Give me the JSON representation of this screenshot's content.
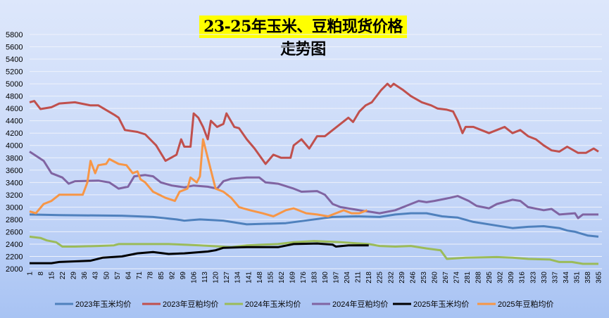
{
  "chart_data": {
    "type": "line",
    "title": "23-25年玉米、豆粕现货价格走势图",
    "xlabel": "",
    "ylabel": "",
    "ylim": [
      2000,
      5800
    ],
    "yticks": [
      2000,
      2200,
      2400,
      2600,
      2800,
      3000,
      3200,
      3400,
      3600,
      3800,
      4000,
      4200,
      4400,
      4600,
      4800,
      5000,
      5200,
      5400,
      5600,
      5800
    ],
    "xlim": [
      1,
      365
    ],
    "xticks": [
      1,
      8,
      15,
      22,
      29,
      36,
      43,
      50,
      57,
      64,
      71,
      78,
      85,
      92,
      99,
      106,
      113,
      120,
      127,
      134,
      141,
      148,
      155,
      162,
      169,
      176,
      183,
      190,
      197,
      204,
      211,
      218,
      225,
      232,
      239,
      246,
      253,
      260,
      267,
      274,
      281,
      288,
      295,
      302,
      309,
      316,
      323,
      330,
      337,
      344,
      351,
      358,
      365
    ],
    "grid": true,
    "legend": "bottom",
    "series": [
      {
        "name": "2023年玉米均价",
        "color": "#4f81bd",
        "points": [
          [
            1,
            2880
          ],
          [
            20,
            2870
          ],
          [
            60,
            2860
          ],
          [
            80,
            2840
          ],
          [
            95,
            2800
          ],
          [
            100,
            2780
          ],
          [
            110,
            2800
          ],
          [
            125,
            2780
          ],
          [
            140,
            2720
          ],
          [
            165,
            2740
          ],
          [
            180,
            2790
          ],
          [
            195,
            2840
          ],
          [
            210,
            2850
          ],
          [
            225,
            2840
          ],
          [
            235,
            2880
          ],
          [
            245,
            2900
          ],
          [
            255,
            2900
          ],
          [
            265,
            2850
          ],
          [
            275,
            2830
          ],
          [
            285,
            2760
          ],
          [
            300,
            2700
          ],
          [
            310,
            2660
          ],
          [
            320,
            2680
          ],
          [
            330,
            2690
          ],
          [
            340,
            2660
          ],
          [
            345,
            2620
          ],
          [
            350,
            2600
          ],
          [
            358,
            2540
          ],
          [
            365,
            2520
          ]
        ]
      },
      {
        "name": "2023年豆粕均价",
        "color": "#c0504d",
        "points": [
          [
            1,
            4700
          ],
          [
            4,
            4720
          ],
          [
            8,
            4590
          ],
          [
            15,
            4620
          ],
          [
            20,
            4680
          ],
          [
            30,
            4700
          ],
          [
            40,
            4650
          ],
          [
            45,
            4650
          ],
          [
            55,
            4500
          ],
          [
            58,
            4450
          ],
          [
            62,
            4250
          ],
          [
            70,
            4220
          ],
          [
            75,
            4180
          ],
          [
            82,
            4000
          ],
          [
            88,
            3750
          ],
          [
            95,
            3850
          ],
          [
            98,
            4100
          ],
          [
            100,
            3980
          ],
          [
            104,
            3980
          ],
          [
            106,
            4520
          ],
          [
            109,
            4450
          ],
          [
            112,
            4300
          ],
          [
            115,
            4100
          ],
          [
            117,
            4400
          ],
          [
            121,
            4300
          ],
          [
            125,
            4350
          ],
          [
            127,
            4520
          ],
          [
            132,
            4300
          ],
          [
            135,
            4280
          ],
          [
            140,
            4100
          ],
          [
            145,
            3950
          ],
          [
            152,
            3700
          ],
          [
            157,
            3850
          ],
          [
            162,
            3800
          ],
          [
            168,
            3800
          ],
          [
            170,
            4000
          ],
          [
            175,
            4100
          ],
          [
            180,
            3950
          ],
          [
            185,
            4150
          ],
          [
            190,
            4150
          ],
          [
            195,
            4250
          ],
          [
            200,
            4350
          ],
          [
            205,
            4450
          ],
          [
            208,
            4380
          ],
          [
            212,
            4550
          ],
          [
            216,
            4650
          ],
          [
            220,
            4700
          ],
          [
            226,
            4900
          ],
          [
            230,
            5000
          ],
          [
            232,
            4950
          ],
          [
            234,
            5000
          ],
          [
            240,
            4900
          ],
          [
            245,
            4800
          ],
          [
            252,
            4700
          ],
          [
            258,
            4650
          ],
          [
            262,
            4600
          ],
          [
            268,
            4580
          ],
          [
            272,
            4550
          ],
          [
            275,
            4400
          ],
          [
            278,
            4200
          ],
          [
            280,
            4300
          ],
          [
            285,
            4300
          ],
          [
            290,
            4250
          ],
          [
            295,
            4200
          ],
          [
            300,
            4250
          ],
          [
            305,
            4300
          ],
          [
            310,
            4200
          ],
          [
            315,
            4250
          ],
          [
            320,
            4150
          ],
          [
            325,
            4100
          ],
          [
            330,
            4000
          ],
          [
            335,
            3920
          ],
          [
            340,
            3900
          ],
          [
            345,
            3980
          ],
          [
            352,
            3880
          ],
          [
            357,
            3880
          ],
          [
            362,
            3950
          ],
          [
            365,
            3900
          ]
        ]
      },
      {
        "name": "2024年玉米均价",
        "color": "#9bbb59",
        "points": [
          [
            1,
            2520
          ],
          [
            8,
            2500
          ],
          [
            12,
            2460
          ],
          [
            18,
            2430
          ],
          [
            22,
            2360
          ],
          [
            30,
            2360
          ],
          [
            45,
            2370
          ],
          [
            55,
            2380
          ],
          [
            58,
            2400
          ],
          [
            90,
            2400
          ],
          [
            110,
            2380
          ],
          [
            130,
            2350
          ],
          [
            140,
            2380
          ],
          [
            160,
            2400
          ],
          [
            170,
            2430
          ],
          [
            183,
            2450
          ],
          [
            200,
            2430
          ],
          [
            218,
            2400
          ],
          [
            225,
            2370
          ],
          [
            235,
            2360
          ],
          [
            245,
            2370
          ],
          [
            255,
            2330
          ],
          [
            264,
            2300
          ],
          [
            268,
            2160
          ],
          [
            280,
            2180
          ],
          [
            300,
            2190
          ],
          [
            310,
            2180
          ],
          [
            320,
            2160
          ],
          [
            334,
            2150
          ],
          [
            340,
            2110
          ],
          [
            348,
            2110
          ],
          [
            355,
            2080
          ],
          [
            365,
            2080
          ]
        ]
      },
      {
        "name": "2024年豆粕均价",
        "color": "#8064a2",
        "points": [
          [
            1,
            3900
          ],
          [
            4,
            3850
          ],
          [
            10,
            3750
          ],
          [
            15,
            3550
          ],
          [
            22,
            3480
          ],
          [
            26,
            3380
          ],
          [
            30,
            3420
          ],
          [
            45,
            3430
          ],
          [
            52,
            3400
          ],
          [
            58,
            3300
          ],
          [
            64,
            3330
          ],
          [
            68,
            3500
          ],
          [
            75,
            3520
          ],
          [
            80,
            3500
          ],
          [
            85,
            3400
          ],
          [
            92,
            3350
          ],
          [
            100,
            3320
          ],
          [
            106,
            3350
          ],
          [
            115,
            3330
          ],
          [
            121,
            3300
          ],
          [
            125,
            3420
          ],
          [
            130,
            3460
          ],
          [
            140,
            3480
          ],
          [
            148,
            3480
          ],
          [
            152,
            3400
          ],
          [
            160,
            3380
          ],
          [
            170,
            3300
          ],
          [
            175,
            3250
          ],
          [
            185,
            3260
          ],
          [
            190,
            3200
          ],
          [
            195,
            3050
          ],
          [
            200,
            3000
          ],
          [
            212,
            2950
          ],
          [
            220,
            2920
          ],
          [
            225,
            2900
          ],
          [
            235,
            2950
          ],
          [
            245,
            3050
          ],
          [
            250,
            3100
          ],
          [
            255,
            3080
          ],
          [
            260,
            3100
          ],
          [
            270,
            3150
          ],
          [
            275,
            3180
          ],
          [
            282,
            3100
          ],
          [
            287,
            3020
          ],
          [
            295,
            2980
          ],
          [
            300,
            3050
          ],
          [
            310,
            3120
          ],
          [
            315,
            3100
          ],
          [
            320,
            3000
          ],
          [
            330,
            2950
          ],
          [
            335,
            2970
          ],
          [
            340,
            2880
          ],
          [
            350,
            2900
          ],
          [
            352,
            2820
          ],
          [
            355,
            2880
          ],
          [
            365,
            2880
          ]
        ]
      },
      {
        "name": "2025年玉米均价",
        "color": "#000000",
        "points": [
          [
            1,
            2090
          ],
          [
            15,
            2090
          ],
          [
            20,
            2110
          ],
          [
            40,
            2130
          ],
          [
            48,
            2180
          ],
          [
            60,
            2200
          ],
          [
            70,
            2250
          ],
          [
            80,
            2270
          ],
          [
            90,
            2240
          ],
          [
            100,
            2250
          ],
          [
            115,
            2280
          ],
          [
            120,
            2300
          ],
          [
            125,
            2340
          ],
          [
            140,
            2350
          ],
          [
            160,
            2350
          ],
          [
            170,
            2400
          ],
          [
            185,
            2410
          ],
          [
            195,
            2390
          ],
          [
            197,
            2360
          ],
          [
            205,
            2380
          ],
          [
            218,
            2380
          ]
        ]
      },
      {
        "name": "2025年豆粕均价",
        "color": "#f79646",
        "points": [
          [
            1,
            2930
          ],
          [
            5,
            2900
          ],
          [
            10,
            3050
          ],
          [
            15,
            3100
          ],
          [
            20,
            3200
          ],
          [
            35,
            3200
          ],
          [
            38,
            3400
          ],
          [
            40,
            3750
          ],
          [
            43,
            3550
          ],
          [
            45,
            3680
          ],
          [
            50,
            3700
          ],
          [
            52,
            3780
          ],
          [
            58,
            3700
          ],
          [
            63,
            3680
          ],
          [
            67,
            3550
          ],
          [
            70,
            3580
          ],
          [
            72,
            3450
          ],
          [
            75,
            3400
          ],
          [
            80,
            3250
          ],
          [
            88,
            3150
          ],
          [
            94,
            3100
          ],
          [
            97,
            3250
          ],
          [
            102,
            3300
          ],
          [
            104,
            3480
          ],
          [
            108,
            3400
          ],
          [
            110,
            3500
          ],
          [
            112,
            4100
          ],
          [
            117,
            3600
          ],
          [
            120,
            3300
          ],
          [
            125,
            3250
          ],
          [
            130,
            3150
          ],
          [
            135,
            3000
          ],
          [
            142,
            2950
          ],
          [
            150,
            2900
          ],
          [
            157,
            2850
          ],
          [
            165,
            2950
          ],
          [
            170,
            2980
          ],
          [
            178,
            2900
          ],
          [
            185,
            2880
          ],
          [
            192,
            2850
          ],
          [
            197,
            2900
          ],
          [
            202,
            2950
          ],
          [
            207,
            2900
          ],
          [
            212,
            2900
          ],
          [
            217,
            2950
          ]
        ]
      }
    ]
  }
}
